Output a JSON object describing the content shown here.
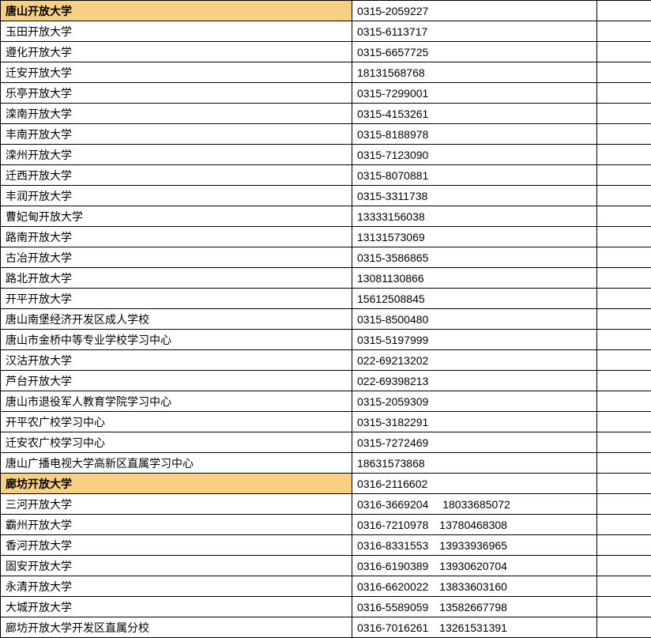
{
  "table": {
    "colors": {
      "header_bg": "#f7d083",
      "normal_bg": "#ffffff",
      "border": "#000000",
      "text": "#000000"
    },
    "font": {
      "family": "SimSun",
      "size": 14
    },
    "columns": {
      "col1_width": 445,
      "col2_width": 310,
      "col3_width": 69
    },
    "rows": [
      {
        "name": "唐山开放大学",
        "phone": "0315-2059227",
        "extra": "",
        "header": true
      },
      {
        "name": "玉田开放大学",
        "phone": "0315-6113717",
        "extra": "",
        "header": false
      },
      {
        "name": "遵化开放大学",
        "phone": "0315-6657725",
        "extra": "",
        "header": false
      },
      {
        "name": "迁安开放大学",
        "phone": "18131568768",
        "extra": "",
        "header": false
      },
      {
        "name": "乐亭开放大学",
        "phone": "0315-7299001",
        "extra": "",
        "header": false
      },
      {
        "name": "滦南开放大学",
        "phone": "0315-4153261",
        "extra": "",
        "header": false
      },
      {
        "name": "丰南开放大学",
        "phone": "0315-8188978",
        "extra": "",
        "header": false
      },
      {
        "name": "滦州开放大学",
        "phone": "0315-7123090",
        "extra": "",
        "header": false
      },
      {
        "name": "迁西开放大学",
        "phone": "0315-8070881",
        "extra": "",
        "header": false
      },
      {
        "name": "丰润开放大学",
        "phone": "0315-3311738",
        "extra": "",
        "header": false
      },
      {
        "name": "曹妃甸开放大学",
        "phone": "13333156038",
        "extra": "",
        "header": false
      },
      {
        "name": "路南开放大学",
        "phone": "13131573069",
        "extra": "",
        "header": false
      },
      {
        "name": "古冶开放大学",
        "phone": "0315-3586865",
        "extra": "",
        "header": false
      },
      {
        "name": "路北开放大学",
        "phone": "13081130866",
        "extra": "",
        "header": false
      },
      {
        "name": "开平开放大学",
        "phone": "15612508845",
        "extra": "",
        "header": false
      },
      {
        "name": "唐山南堡经济开发区成人学校",
        "phone": "0315-8500480",
        "extra": "",
        "header": false
      },
      {
        "name": "唐山市金桥中等专业学校学习中心",
        "phone": "0315-5197999",
        "extra": "",
        "header": false
      },
      {
        "name": "汉沽开放大学",
        "phone": "022-69213202",
        "extra": "",
        "header": false
      },
      {
        "name": "芦台开放大学",
        "phone": "022-69398213",
        "extra": "",
        "header": false
      },
      {
        "name": "唐山市退役军人教育学院学习中心",
        "phone": "0315-2059309",
        "extra": "",
        "header": false
      },
      {
        "name": "开平农广校学习中心",
        "phone": "0315-3182291",
        "extra": "",
        "header": false
      },
      {
        "name": "迁安农广校学习中心",
        "phone": "0315-7272469",
        "extra": "",
        "header": false
      },
      {
        "name": "唐山广播电视大学高新区直属学习中心",
        "phone": "18631573868",
        "extra": "",
        "header": false
      },
      {
        "name": "廊坊开放大学",
        "phone": "0316-2116602",
        "extra": "",
        "header": true
      },
      {
        "name": "三河开放大学",
        "phone": "0316-3669204　 18033685072",
        "extra": "",
        "header": false
      },
      {
        "name": "霸州开放大学",
        "phone": "0316-7210978　13780468308",
        "extra": "",
        "header": false
      },
      {
        "name": "香河开放大学",
        "phone": "0316-8331553　13933936965",
        "extra": "",
        "header": false
      },
      {
        "name": "固安开放大学",
        "phone": "0316-6190389　13930620704",
        "extra": "",
        "header": false
      },
      {
        "name": "永清开放大学",
        "phone": "0316-6620022　13833603160",
        "extra": "",
        "header": false
      },
      {
        "name": "大城开放大学",
        "phone": "0316-5589059　13582667798",
        "extra": "",
        "header": false
      },
      {
        "name": "廊坊开放大学开发区直属分校",
        "phone": "0316-7016261　13261531391",
        "extra": "",
        "header": false
      }
    ]
  }
}
